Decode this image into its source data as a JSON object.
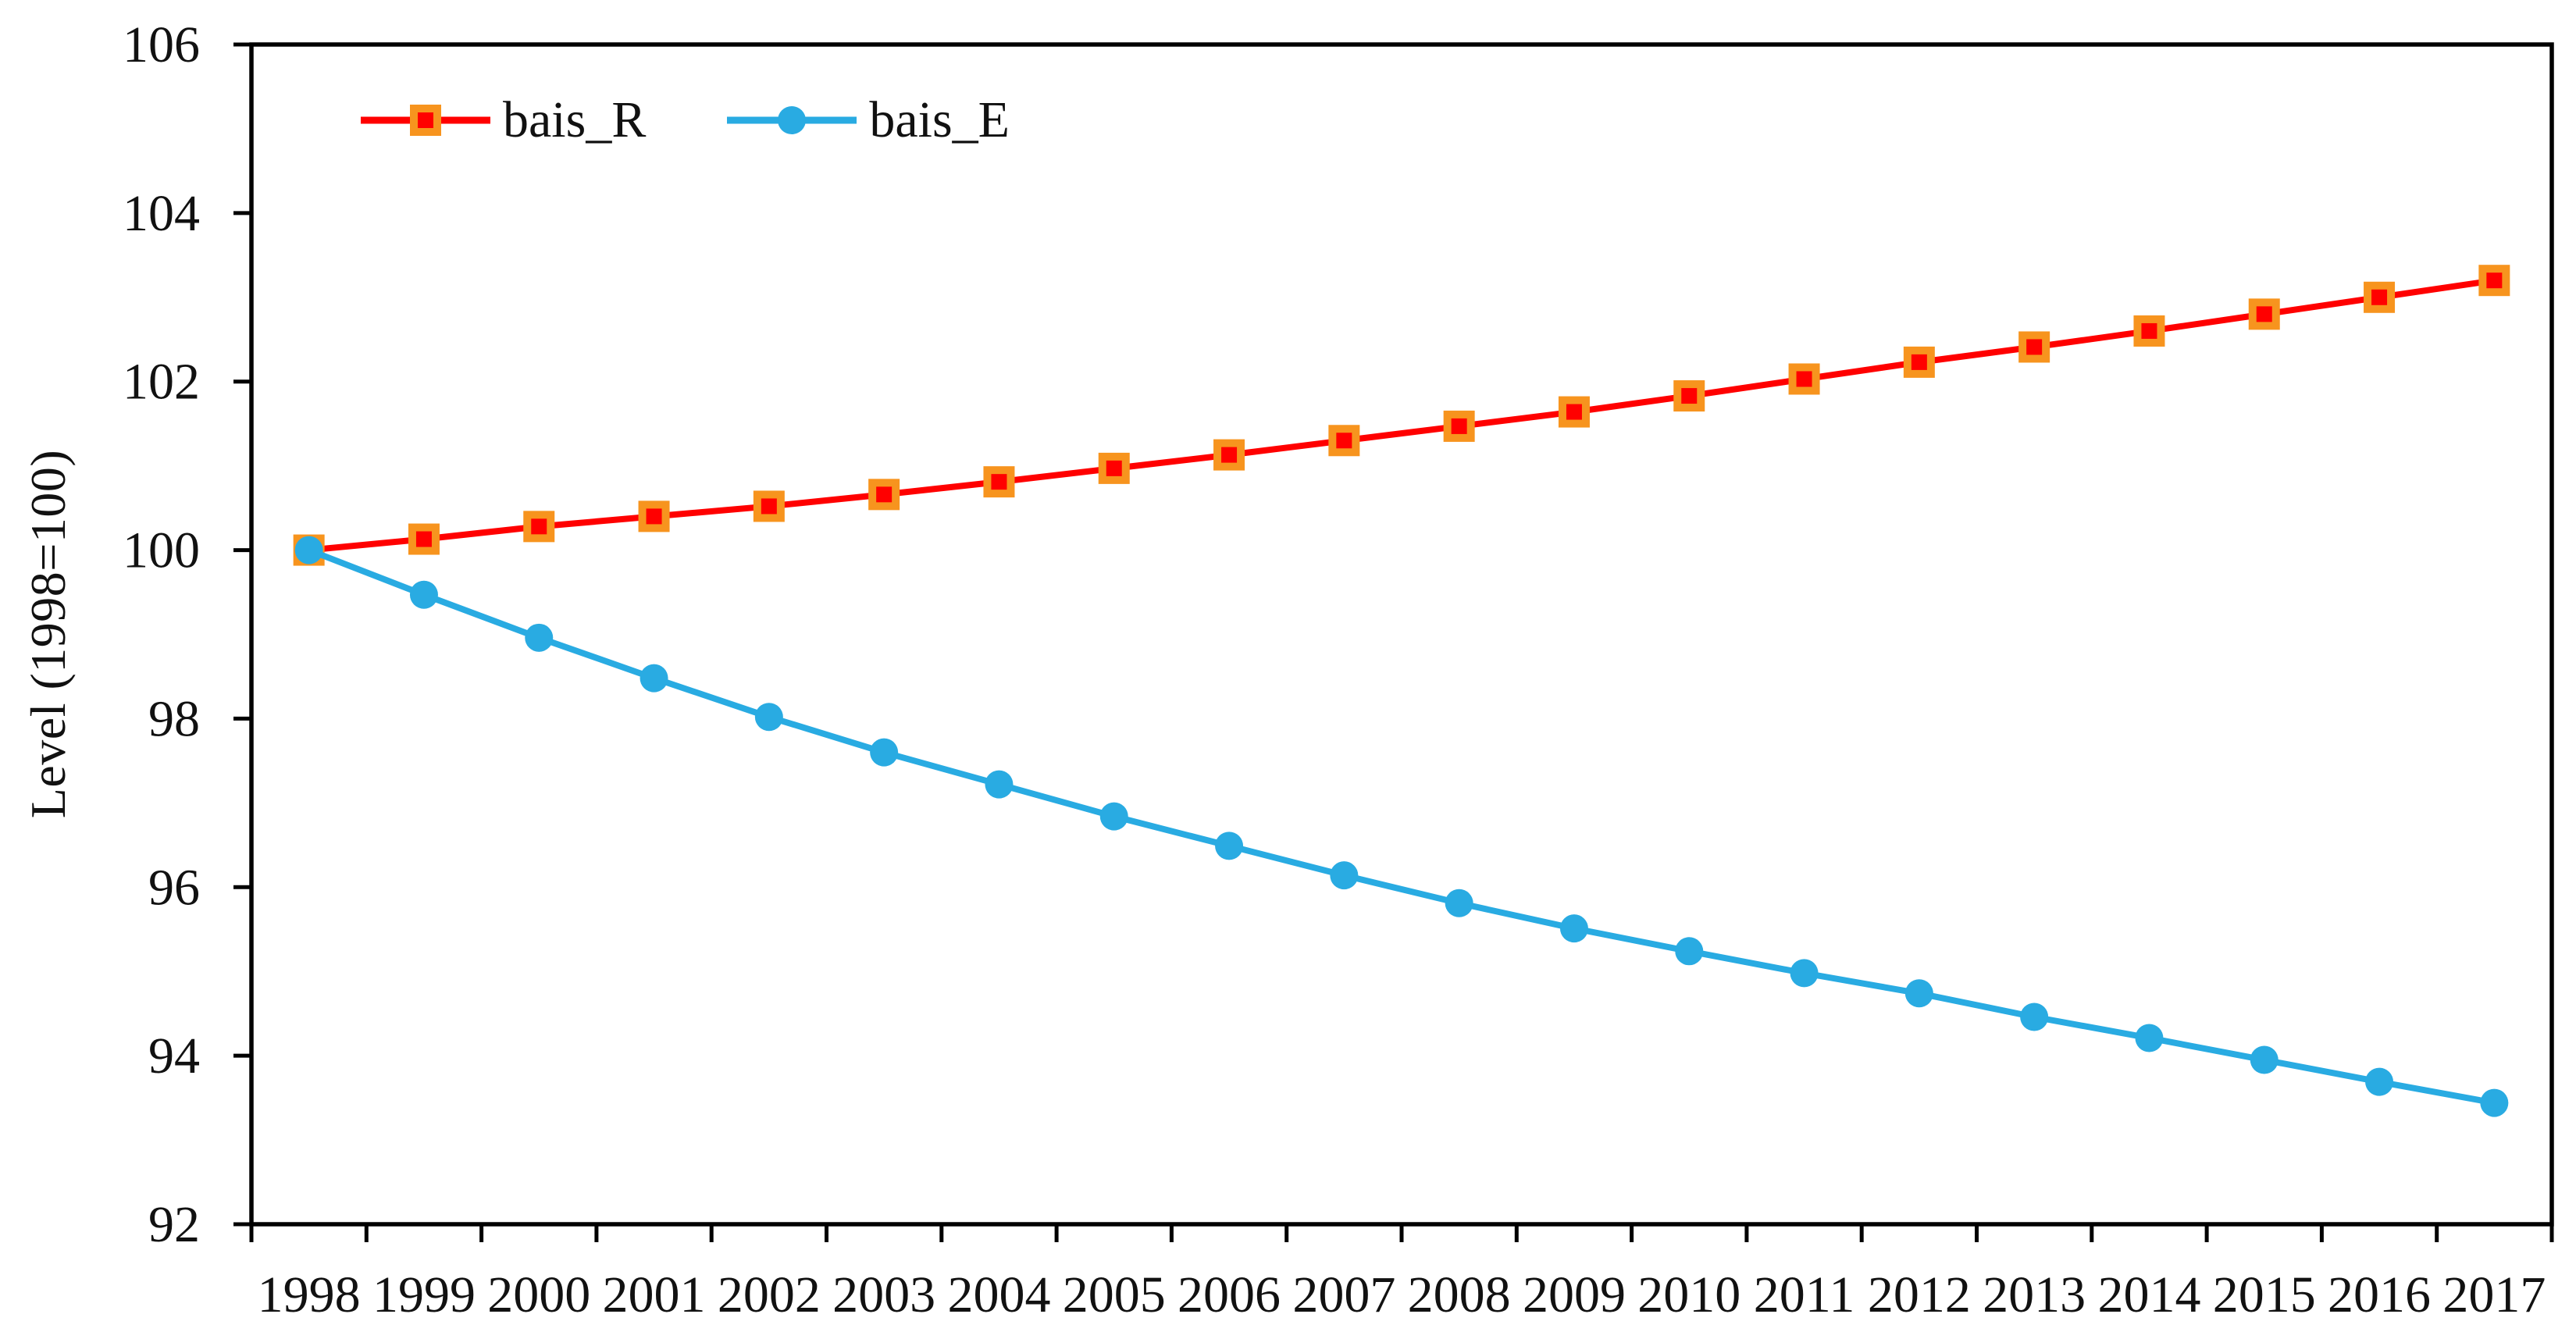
{
  "chart_data": {
    "type": "line",
    "title": "",
    "xlabel": "",
    "ylabel": "Level (1998=100)",
    "ylim": [
      92,
      106
    ],
    "y_ticks": [
      106,
      104,
      102,
      100,
      98,
      96,
      94,
      92
    ],
    "grid": false,
    "legend_position": "top-left-inside",
    "frame_color": "#000000",
    "x": [
      "1998",
      "1999",
      "2000",
      "2001",
      "2002",
      "2003",
      "2004",
      "2005",
      "2006",
      "2007",
      "2008",
      "2009",
      "2010",
      "2011",
      "2012",
      "2013",
      "2014",
      "2015",
      "2016",
      "2017"
    ],
    "series": [
      {
        "name": "bais_R",
        "color": "#FF0000",
        "marker": "square",
        "marker_border": "#F7941E",
        "values": [
          100.0,
          100.13,
          100.28,
          100.4,
          100.52,
          100.66,
          100.81,
          100.97,
          101.13,
          101.3,
          101.47,
          101.64,
          101.83,
          102.03,
          102.23,
          102.41,
          102.6,
          102.8,
          103.0,
          103.2
        ]
      },
      {
        "name": "bais_E",
        "color": "#29ABE2",
        "marker": "circle",
        "marker_border": "#29ABE2",
        "values": [
          100.0,
          99.47,
          98.96,
          98.48,
          98.02,
          97.6,
          97.22,
          96.84,
          96.49,
          96.14,
          95.81,
          95.51,
          95.24,
          94.98,
          94.74,
          94.46,
          94.21,
          93.95,
          93.69,
          93.44
        ]
      }
    ]
  }
}
